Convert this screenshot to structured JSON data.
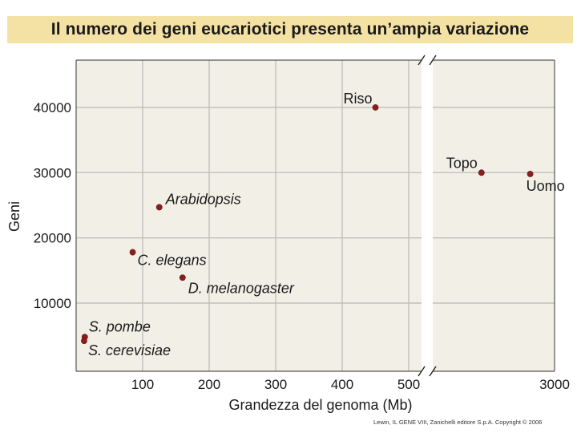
{
  "title": "Il numero dei geni eucariotici presenta un’ampia variazione",
  "credit": "Lewin, IL GENE VIII, Zanichelli editore S.p.A. Copyright © 2006",
  "chart_data": {
    "type": "scatter",
    "title": "Il numero dei geni eucariotici presenta un’ampia variazione",
    "xlabel": "Grandezza del genoma (Mb)",
    "ylabel": "Geni",
    "x_break": {
      "from": 520,
      "to": 2500
    },
    "xlim": [
      0,
      3000
    ],
    "ylim": [
      0,
      45000
    ],
    "x_ticks": [
      {
        "value": 100,
        "label": "100"
      },
      {
        "value": 200,
        "label": "200"
      },
      {
        "value": 300,
        "label": "300"
      },
      {
        "value": 400,
        "label": "400"
      },
      {
        "value": 500,
        "label": "500"
      },
      {
        "value": 3000,
        "label": "3000"
      }
    ],
    "y_ticks": [
      {
        "value": 10000,
        "label": "10000"
      },
      {
        "value": 20000,
        "label": "20000"
      },
      {
        "value": 30000,
        "label": "30000"
      },
      {
        "value": 40000,
        "label": "40000"
      }
    ],
    "grid": true,
    "points": [
      {
        "label": "S. pombe",
        "x": 13,
        "y": 4800,
        "italic": true
      },
      {
        "label": "S. cerevisiae",
        "x": 12,
        "y": 4200,
        "italic": true
      },
      {
        "label": "C. elegans",
        "x": 85,
        "y": 17800,
        "italic": true
      },
      {
        "label": "Arabidopsis",
        "x": 125,
        "y": 24700,
        "italic": true
      },
      {
        "label": "D. melanogaster",
        "x": 160,
        "y": 13900,
        "italic": true
      },
      {
        "label": "Riso",
        "x": 450,
        "y": 40000,
        "italic": false
      },
      {
        "label": "Topo",
        "x": 2700,
        "y": 30000,
        "italic": false
      },
      {
        "label": "Uomo",
        "x": 2900,
        "y": 29800,
        "italic": false
      }
    ],
    "colors": {
      "background": "#f2f0e6",
      "grid": "#bfbfbf",
      "point": "#8e1d1d",
      "title_band": "#f4e2a4"
    }
  }
}
